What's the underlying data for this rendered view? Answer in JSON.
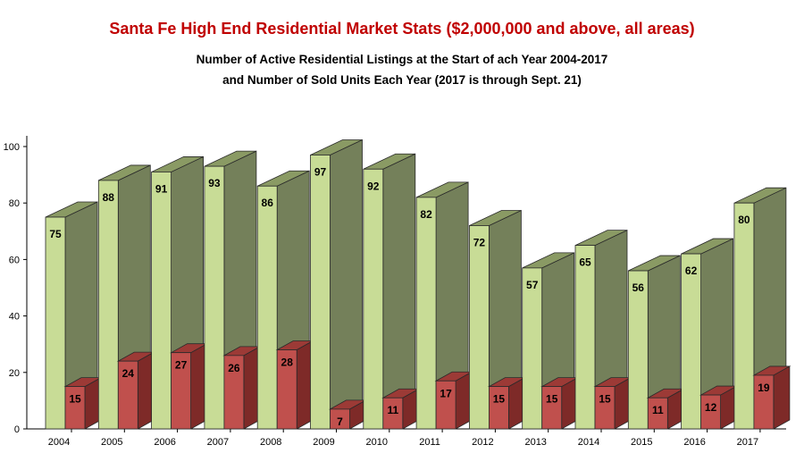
{
  "colors": {
    "title": "#c00000",
    "active_front": "#c8dc96",
    "active_top": "#8a9a64",
    "active_side": "#74805a",
    "sold_front": "#c0504d",
    "sold_top": "#9c3a36",
    "sold_side": "#7e2a28"
  },
  "chart_data": {
    "type": "bar",
    "title": "Santa Fe High End Residential Market Stats ($2,000,000 and above, all areas)",
    "subtitle_line1": "Number of Active Residential Listings at the Start of ach Year 2004-2017",
    "subtitle_line2": "and Number of Sold Units Each Year (2017 is through Sept. 21)",
    "categories": [
      "2004",
      "2005",
      "2006",
      "2007",
      "2008",
      "2009",
      "2010",
      "2011",
      "2012",
      "2013",
      "2014",
      "2015",
      "2016",
      "2017"
    ],
    "series": [
      {
        "values": [
          75,
          88,
          91,
          93,
          86,
          97,
          92,
          82,
          72,
          57,
          65,
          56,
          62,
          80
        ]
      },
      {
        "values": [
          15,
          24,
          27,
          26,
          28,
          7,
          11,
          17,
          15,
          15,
          15,
          11,
          12,
          19
        ]
      }
    ],
    "ylim": [
      0,
      100
    ],
    "yticks": [
      "0",
      "20",
      "40",
      "60",
      "80",
      "100"
    ],
    "style": "3d-column",
    "grid": false,
    "legend": "none"
  }
}
